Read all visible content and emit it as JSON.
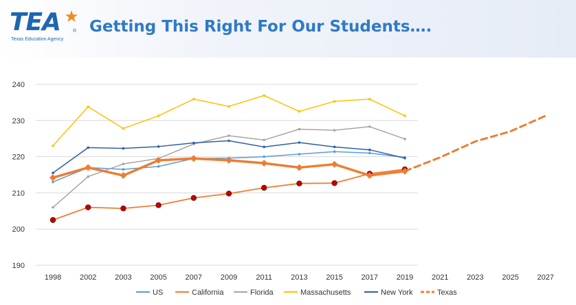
{
  "header": {
    "logo_text": "TEA",
    "logo_registered": "®",
    "logo_subtitle": "Texas Education Agency",
    "title": "Getting This Right For Our Students…."
  },
  "chart_data": {
    "type": "line",
    "title": "Getting This Right For Our Students….",
    "xlabel": "",
    "ylabel": "",
    "categories": [
      "1998",
      "2002",
      "2003",
      "2005",
      "2007",
      "2009",
      "2011",
      "2013",
      "2015",
      "2017",
      "2019",
      "2021",
      "2023",
      "2025",
      "2027"
    ],
    "ylim": [
      190,
      240
    ],
    "yticks": [
      190,
      200,
      210,
      220,
      230,
      240
    ],
    "grid": true,
    "legend_position": "bottom",
    "series": [
      {
        "name": "US",
        "color": "#5b9bd5",
        "width": 1.5,
        "dash": false,
        "markerless": false,
        "values": [
          213,
          217,
          216.5,
          217.3,
          219.5,
          219.6,
          220,
          220.7,
          221.4,
          221,
          219.8,
          null,
          null,
          null,
          null
        ]
      },
      {
        "name": "California",
        "color": "#ed7d31",
        "width": 1.8,
        "dash": false,
        "markerless": false,
        "dots": true,
        "values": [
          202.5,
          206,
          205.7,
          206.6,
          208.6,
          209.8,
          211.4,
          212.6,
          212.7,
          215.3,
          216.5,
          null,
          null,
          null,
          null
        ]
      },
      {
        "name": "Florida",
        "color": "#a5a5a5",
        "width": 1.5,
        "dash": false,
        "markerless": false,
        "values": [
          206,
          214.5,
          218,
          219.5,
          223.5,
          225.8,
          224.6,
          227.6,
          227.3,
          228.3,
          224.9,
          null,
          null,
          null,
          null
        ]
      },
      {
        "name": "Massachusetts",
        "color": "#ffc000",
        "width": 1.5,
        "dash": false,
        "markerless": false,
        "values": [
          223,
          233.8,
          227.8,
          231.3,
          235.9,
          233.9,
          236.9,
          232.5,
          235.3,
          235.9,
          231.3,
          null,
          null,
          null,
          null
        ]
      },
      {
        "name": "New York",
        "color": "#2e5fa3",
        "width": 1.5,
        "dash": false,
        "markerless": false,
        "values": [
          215.5,
          222.5,
          222.3,
          222.8,
          223.8,
          224.4,
          222.7,
          223.9,
          222.7,
          221.9,
          219.6,
          null,
          null,
          null,
          null
        ]
      },
      {
        "name": "Texas",
        "color": "#ed7d31",
        "width": 3.5,
        "dash": false,
        "markerless": false,
        "thick": true,
        "legend": false,
        "values": [
          214.2,
          217,
          214.8,
          219,
          219.5,
          219,
          218.2,
          217,
          217.9,
          214.8,
          216,
          null,
          null,
          null,
          null
        ]
      },
      {
        "name": "Texas",
        "color": "#ed7d31",
        "width": 3,
        "dash": true,
        "markerless": true,
        "legend": true,
        "values": [
          null,
          null,
          null,
          null,
          null,
          null,
          null,
          null,
          null,
          null,
          216,
          219.8,
          224.2,
          227,
          231.3
        ]
      }
    ]
  }
}
